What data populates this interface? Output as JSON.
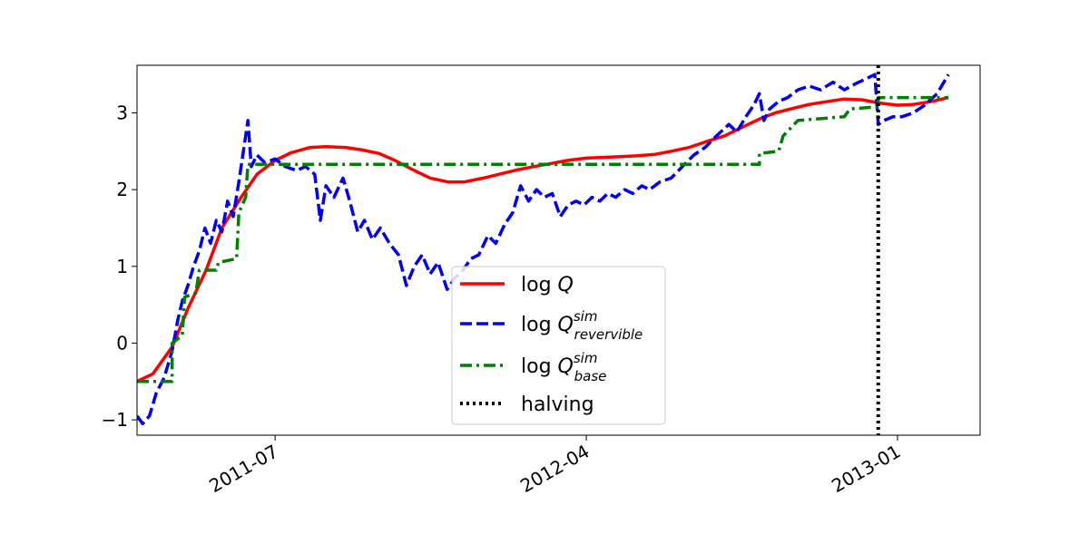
{
  "chart_data": {
    "type": "line",
    "title": "",
    "xlabel": "",
    "ylabel": "",
    "x_axis": {
      "type": "date",
      "range": [
        "2011-03-01",
        "2013-03-15"
      ],
      "ticks": [
        {
          "date": "2011-07-01",
          "label": "2011-07"
        },
        {
          "date": "2012-04-01",
          "label": "2012-04"
        },
        {
          "date": "2013-01-01",
          "label": "2013-01"
        }
      ]
    },
    "y_axis": {
      "range": [
        -1.2,
        3.62
      ],
      "ticks": [
        {
          "value": -1,
          "label": "−1"
        },
        {
          "value": 0,
          "label": "0"
        },
        {
          "value": 1,
          "label": "1"
        },
        {
          "value": 2,
          "label": "2"
        },
        {
          "value": 3,
          "label": "3"
        }
      ]
    },
    "grid": false,
    "legend_position": "lower-center",
    "series": [
      {
        "id": "logQ",
        "name": "log Q",
        "legend": {
          "prefix": "log ",
          "var": "Q",
          "sup": "",
          "sub": ""
        },
        "color": "#ff0000",
        "style": "solid",
        "points": [
          [
            "2011-03-01",
            -0.5
          ],
          [
            "2011-03-15",
            -0.4
          ],
          [
            "2011-04-01",
            -0.05
          ],
          [
            "2011-04-15",
            0.45
          ],
          [
            "2011-05-01",
            0.95
          ],
          [
            "2011-05-15",
            1.5
          ],
          [
            "2011-06-01",
            1.9
          ],
          [
            "2011-06-15",
            2.2
          ],
          [
            "2011-07-01",
            2.38
          ],
          [
            "2011-07-15",
            2.48
          ],
          [
            "2011-08-01",
            2.55
          ],
          [
            "2011-08-15",
            2.56
          ],
          [
            "2011-09-01",
            2.55
          ],
          [
            "2011-09-15",
            2.52
          ],
          [
            "2011-10-01",
            2.47
          ],
          [
            "2011-10-15",
            2.38
          ],
          [
            "2011-11-01",
            2.25
          ],
          [
            "2011-11-15",
            2.15
          ],
          [
            "2011-12-01",
            2.1
          ],
          [
            "2011-12-15",
            2.1
          ],
          [
            "2012-01-01",
            2.15
          ],
          [
            "2012-01-15",
            2.2
          ],
          [
            "2012-02-01",
            2.26
          ],
          [
            "2012-02-15",
            2.3
          ],
          [
            "2012-03-01",
            2.34
          ],
          [
            "2012-03-15",
            2.38
          ],
          [
            "2012-04-01",
            2.41
          ],
          [
            "2012-04-15",
            2.42
          ],
          [
            "2012-05-01",
            2.43
          ],
          [
            "2012-05-15",
            2.44
          ],
          [
            "2012-06-01",
            2.46
          ],
          [
            "2012-06-15",
            2.5
          ],
          [
            "2012-07-01",
            2.55
          ],
          [
            "2012-07-15",
            2.62
          ],
          [
            "2012-08-01",
            2.7
          ],
          [
            "2012-08-15",
            2.8
          ],
          [
            "2012-09-01",
            2.92
          ],
          [
            "2012-09-15",
            3.0
          ],
          [
            "2012-10-01",
            3.06
          ],
          [
            "2012-10-15",
            3.11
          ],
          [
            "2012-11-01",
            3.15
          ],
          [
            "2012-11-15",
            3.18
          ],
          [
            "2012-12-01",
            3.17
          ],
          [
            "2012-12-15",
            3.13
          ],
          [
            "2013-01-01",
            3.1
          ],
          [
            "2013-01-15",
            3.11
          ],
          [
            "2013-02-01",
            3.15
          ],
          [
            "2013-02-15",
            3.2
          ]
        ]
      },
      {
        "id": "logQrev",
        "name": "log Q^sim_revervible",
        "legend": {
          "prefix": "log ",
          "var": "Q",
          "sup": "sim",
          "sub": "revervible"
        },
        "color": "#0000ff",
        "style": "dashed",
        "points": [
          [
            "2011-03-01",
            -0.95
          ],
          [
            "2011-03-06",
            -1.05
          ],
          [
            "2011-03-12",
            -0.95
          ],
          [
            "2011-03-18",
            -0.65
          ],
          [
            "2011-03-25",
            -0.45
          ],
          [
            "2011-04-01",
            -0.1
          ],
          [
            "2011-04-06",
            0.3
          ],
          [
            "2011-04-10",
            0.55
          ],
          [
            "2011-04-15",
            0.75
          ],
          [
            "2011-04-20",
            1.0
          ],
          [
            "2011-04-25",
            1.2
          ],
          [
            "2011-04-30",
            1.5
          ],
          [
            "2011-05-05",
            1.3
          ],
          [
            "2011-05-10",
            1.6
          ],
          [
            "2011-05-15",
            1.45
          ],
          [
            "2011-05-20",
            1.85
          ],
          [
            "2011-05-25",
            1.65
          ],
          [
            "2011-05-30",
            2.1
          ],
          [
            "2011-06-03",
            2.5
          ],
          [
            "2011-06-07",
            2.9
          ],
          [
            "2011-06-10",
            2.3
          ],
          [
            "2011-06-15",
            2.45
          ],
          [
            "2011-06-22",
            2.35
          ],
          [
            "2011-07-01",
            2.4
          ],
          [
            "2011-07-10",
            2.3
          ],
          [
            "2011-07-20",
            2.25
          ],
          [
            "2011-07-28",
            2.3
          ],
          [
            "2011-08-05",
            2.2
          ],
          [
            "2011-08-10",
            1.6
          ],
          [
            "2011-08-15",
            2.05
          ],
          [
            "2011-08-22",
            1.9
          ],
          [
            "2011-08-30",
            2.15
          ],
          [
            "2011-09-05",
            1.85
          ],
          [
            "2011-09-12",
            1.45
          ],
          [
            "2011-09-18",
            1.6
          ],
          [
            "2011-09-25",
            1.35
          ],
          [
            "2011-10-02",
            1.5
          ],
          [
            "2011-10-10",
            1.3
          ],
          [
            "2011-10-18",
            1.15
          ],
          [
            "2011-10-25",
            0.75
          ],
          [
            "2011-11-01",
            1.0
          ],
          [
            "2011-11-08",
            1.15
          ],
          [
            "2011-11-15",
            0.9
          ],
          [
            "2011-11-22",
            1.05
          ],
          [
            "2011-11-30",
            0.7
          ],
          [
            "2011-12-07",
            0.85
          ],
          [
            "2011-12-14",
            0.95
          ],
          [
            "2011-12-21",
            1.1
          ],
          [
            "2011-12-28",
            1.15
          ],
          [
            "2012-01-05",
            1.4
          ],
          [
            "2012-01-12",
            1.3
          ],
          [
            "2012-01-20",
            1.55
          ],
          [
            "2012-01-27",
            1.7
          ],
          [
            "2012-02-03",
            2.05
          ],
          [
            "2012-02-10",
            1.85
          ],
          [
            "2012-02-17",
            2.0
          ],
          [
            "2012-02-24",
            1.9
          ],
          [
            "2012-03-02",
            1.95
          ],
          [
            "2012-03-09",
            1.65
          ],
          [
            "2012-03-16",
            1.8
          ],
          [
            "2012-03-23",
            1.85
          ],
          [
            "2012-03-30",
            1.8
          ],
          [
            "2012-04-06",
            1.9
          ],
          [
            "2012-04-13",
            1.85
          ],
          [
            "2012-04-20",
            1.95
          ],
          [
            "2012-04-27",
            1.9
          ],
          [
            "2012-05-05",
            2.0
          ],
          [
            "2012-05-12",
            1.95
          ],
          [
            "2012-05-20",
            2.05
          ],
          [
            "2012-05-27",
            2.0
          ],
          [
            "2012-06-05",
            2.1
          ],
          [
            "2012-06-15",
            2.15
          ],
          [
            "2012-06-25",
            2.3
          ],
          [
            "2012-07-05",
            2.45
          ],
          [
            "2012-07-15",
            2.55
          ],
          [
            "2012-07-25",
            2.7
          ],
          [
            "2012-08-05",
            2.85
          ],
          [
            "2012-08-12",
            2.75
          ],
          [
            "2012-08-20",
            2.95
          ],
          [
            "2012-08-27",
            3.1
          ],
          [
            "2012-09-01",
            3.25
          ],
          [
            "2012-09-05",
            2.9
          ],
          [
            "2012-09-10",
            3.05
          ],
          [
            "2012-09-18",
            3.15
          ],
          [
            "2012-09-26",
            3.2
          ],
          [
            "2012-10-05",
            3.3
          ],
          [
            "2012-10-15",
            3.35
          ],
          [
            "2012-10-25",
            3.3
          ],
          [
            "2012-11-05",
            3.4
          ],
          [
            "2012-11-15",
            3.3
          ],
          [
            "2012-11-25",
            3.38
          ],
          [
            "2012-12-05",
            3.45
          ],
          [
            "2012-12-12",
            3.5
          ],
          [
            "2012-12-15",
            2.85
          ],
          [
            "2012-12-20",
            2.9
          ],
          [
            "2012-12-28",
            2.95
          ],
          [
            "2013-01-05",
            2.95
          ],
          [
            "2013-01-15",
            3.0
          ],
          [
            "2013-01-25",
            3.1
          ],
          [
            "2013-02-05",
            3.25
          ],
          [
            "2013-02-15",
            3.5
          ]
        ]
      },
      {
        "id": "logQbase",
        "name": "log Q^sim_base",
        "legend": {
          "prefix": "log ",
          "var": "Q",
          "sup": "sim",
          "sub": "base"
        },
        "color": "#008000",
        "style": "dashdot",
        "points": [
          [
            "2011-03-01",
            -0.5
          ],
          [
            "2011-04-01",
            -0.5
          ],
          [
            "2011-04-01",
            0.0
          ],
          [
            "2011-04-10",
            0.1
          ],
          [
            "2011-04-12",
            0.6
          ],
          [
            "2011-04-22",
            0.65
          ],
          [
            "2011-04-25",
            0.95
          ],
          [
            "2011-05-10",
            0.95
          ],
          [
            "2011-05-12",
            1.05
          ],
          [
            "2011-05-28",
            1.1
          ],
          [
            "2011-05-30",
            1.7
          ],
          [
            "2011-06-05",
            1.9
          ],
          [
            "2011-06-07",
            2.33
          ],
          [
            "2012-09-01",
            2.33
          ],
          [
            "2012-09-01",
            2.47
          ],
          [
            "2012-09-18",
            2.5
          ],
          [
            "2012-09-22",
            2.7
          ],
          [
            "2012-10-05",
            2.9
          ],
          [
            "2012-11-15",
            2.95
          ],
          [
            "2012-11-20",
            3.05
          ],
          [
            "2012-12-15",
            3.08
          ],
          [
            "2012-12-15",
            3.2
          ],
          [
            "2013-02-15",
            3.2
          ]
        ]
      }
    ],
    "annotations": [
      {
        "type": "vline",
        "date": "2012-12-15",
        "name": "halving",
        "color": "#000000",
        "style": "dotted"
      }
    ]
  },
  "legend_labels": {
    "halving": "halving"
  }
}
